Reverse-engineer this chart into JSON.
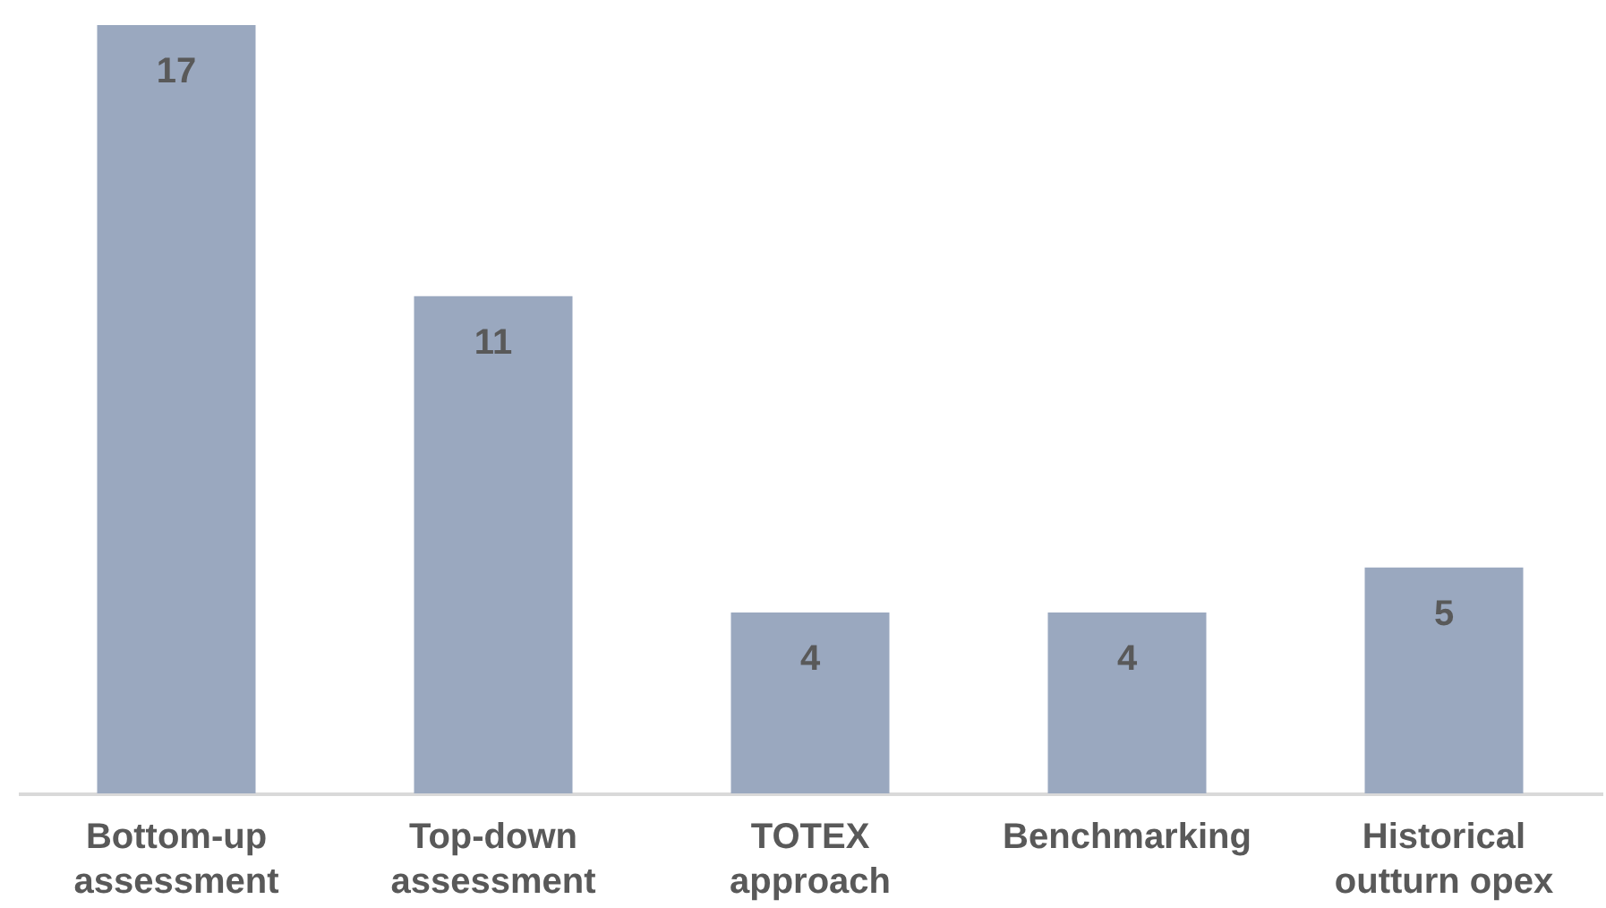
{
  "chart_data": {
    "type": "bar",
    "categories": [
      "Bottom-up assessment",
      "Top-down assessment",
      "TOTEX approach",
      "Benchmarking",
      "Historical outturn opex"
    ],
    "values": [
      17,
      11,
      4,
      4,
      5
    ],
    "color": "#9aa8bf",
    "data_labels": true
  }
}
